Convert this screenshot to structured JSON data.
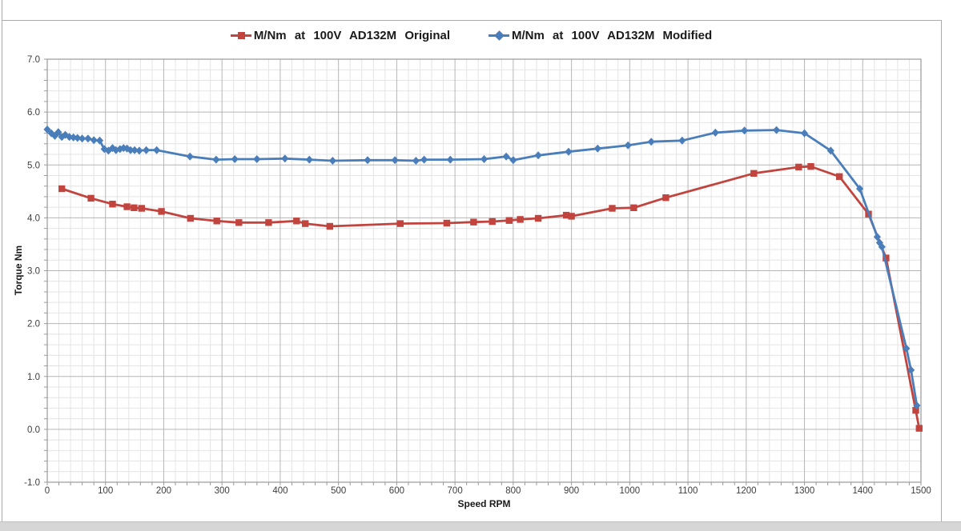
{
  "colors": {
    "frame": "#ababab",
    "bottom_bar": "#d6d6d6",
    "grid_minor": "#e4e4e4",
    "grid_major": "#b6b6b6",
    "axis": "#9a9a9a",
    "tick_text": "#3d3d3d",
    "series_original": "#C2443F",
    "series_modified": "#4A7EBB"
  },
  "chart_data": {
    "type": "line",
    "title": "",
    "xlabel": "Speed RPM",
    "ylabel": "Torque Nm",
    "xlim": [
      0,
      1500
    ],
    "ylim": [
      -1.0,
      7.0
    ],
    "x_ticks": [
      0,
      100,
      200,
      300,
      400,
      500,
      600,
      700,
      800,
      900,
      1000,
      1100,
      1200,
      1300,
      1400,
      1500
    ],
    "y_ticks": [
      "7.0",
      "6.0",
      "5.0",
      "4.0",
      "3.0",
      "2.0",
      "1.0",
      "0.0",
      "-1.0"
    ],
    "x_tick_step": 100,
    "x_minor_step": 20,
    "y_tick_step": 1.0,
    "y_minor_step": 0.2,
    "grid": true,
    "legend_position": "top-center",
    "series": [
      {
        "id": "original",
        "name": "M/Nm at 100V AD132M Original",
        "color": "#C2443F",
        "marker": "square",
        "points": [
          [
            25,
            4.55
          ],
          [
            75,
            4.37
          ],
          [
            112,
            4.26
          ],
          [
            137,
            4.21
          ],
          [
            149,
            4.19
          ],
          [
            162,
            4.18
          ],
          [
            196,
            4.12
          ],
          [
            246,
            3.99
          ],
          [
            291,
            3.94
          ],
          [
            329,
            3.91
          ],
          [
            380,
            3.91
          ],
          [
            428,
            3.94
          ],
          [
            443,
            3.89
          ],
          [
            485,
            3.84
          ],
          [
            606,
            3.89
          ],
          [
            686,
            3.9
          ],
          [
            732,
            3.92
          ],
          [
            764,
            3.93
          ],
          [
            793,
            3.95
          ],
          [
            812,
            3.97
          ],
          [
            843,
            3.99
          ],
          [
            891,
            4.05
          ],
          [
            900,
            4.03
          ],
          [
            970,
            4.18
          ],
          [
            1007,
            4.19
          ],
          [
            1062,
            4.38
          ],
          [
            1213,
            4.84
          ],
          [
            1290,
            4.96
          ],
          [
            1311,
            4.97
          ],
          [
            1360,
            4.78
          ],
          [
            1410,
            4.07
          ],
          [
            1440,
            3.24
          ],
          [
            1491,
            0.36
          ],
          [
            1497,
            0.02
          ]
        ]
      },
      {
        "id": "modified",
        "name": "M/Nm at 100V AD132M Modified",
        "color": "#4A7EBB",
        "marker": "diamond",
        "points": [
          [
            0,
            5.67
          ],
          [
            7,
            5.6
          ],
          [
            13,
            5.55
          ],
          [
            19,
            5.62
          ],
          [
            25,
            5.53
          ],
          [
            31,
            5.57
          ],
          [
            38,
            5.53
          ],
          [
            45,
            5.52
          ],
          [
            52,
            5.51
          ],
          [
            60,
            5.5
          ],
          [
            70,
            5.5
          ],
          [
            80,
            5.47
          ],
          [
            90,
            5.46
          ],
          [
            98,
            5.3
          ],
          [
            105,
            5.27
          ],
          [
            112,
            5.32
          ],
          [
            118,
            5.28
          ],
          [
            125,
            5.3
          ],
          [
            131,
            5.32
          ],
          [
            137,
            5.31
          ],
          [
            143,
            5.28
          ],
          [
            150,
            5.28
          ],
          [
            158,
            5.27
          ],
          [
            170,
            5.28
          ],
          [
            188,
            5.28
          ],
          [
            245,
            5.16
          ],
          [
            290,
            5.1
          ],
          [
            322,
            5.11
          ],
          [
            360,
            5.11
          ],
          [
            408,
            5.12
          ],
          [
            450,
            5.1
          ],
          [
            490,
            5.08
          ],
          [
            550,
            5.09
          ],
          [
            597,
            5.09
          ],
          [
            633,
            5.08
          ],
          [
            647,
            5.1
          ],
          [
            692,
            5.1
          ],
          [
            750,
            5.11
          ],
          [
            788,
            5.16
          ],
          [
            800,
            5.09
          ],
          [
            843,
            5.18
          ],
          [
            895,
            5.25
          ],
          [
            945,
            5.31
          ],
          [
            997,
            5.37
          ],
          [
            1037,
            5.44
          ],
          [
            1090,
            5.46
          ],
          [
            1147,
            5.61
          ],
          [
            1197,
            5.65
          ],
          [
            1252,
            5.66
          ],
          [
            1300,
            5.6
          ],
          [
            1345,
            5.27
          ],
          [
            1395,
            4.55
          ],
          [
            1425,
            3.64
          ],
          [
            1429,
            3.53
          ],
          [
            1433,
            3.45
          ],
          [
            1475,
            1.53
          ],
          [
            1483,
            1.12
          ],
          [
            1493,
            0.45
          ]
        ]
      }
    ]
  }
}
